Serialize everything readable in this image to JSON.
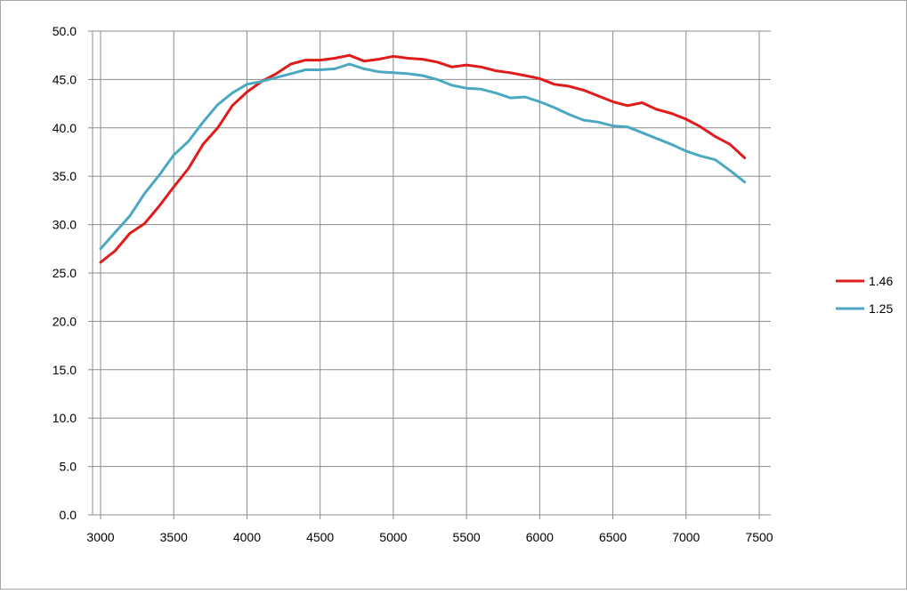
{
  "chart_data": {
    "type": "line",
    "title": "",
    "xlabel": "",
    "ylabel": "",
    "xlim": [
      3000,
      7500
    ],
    "ylim": [
      0,
      50
    ],
    "x_ticks": [
      "3000",
      "3500",
      "4000",
      "4500",
      "5000",
      "5500",
      "6000",
      "6500",
      "7000",
      "7500"
    ],
    "y_ticks": [
      "0.0",
      "5.0",
      "10.0",
      "15.0",
      "20.0",
      "25.0",
      "30.0",
      "35.0",
      "40.0",
      "45.0",
      "50.0"
    ],
    "grid": true,
    "legend_position": "right",
    "series": [
      {
        "name": "1.46",
        "color": "#e01b1b",
        "points": [
          [
            3000,
            26.1
          ],
          [
            3100,
            27.3
          ],
          [
            3200,
            29.1
          ],
          [
            3300,
            30.1
          ],
          [
            3400,
            31.9
          ],
          [
            3500,
            33.9
          ],
          [
            3600,
            35.8
          ],
          [
            3700,
            38.3
          ],
          [
            3800,
            40.0
          ],
          [
            3900,
            42.3
          ],
          [
            4000,
            43.7
          ],
          [
            4100,
            44.8
          ],
          [
            4200,
            45.6
          ],
          [
            4300,
            46.6
          ],
          [
            4400,
            47.0
          ],
          [
            4500,
            47.0
          ],
          [
            4600,
            47.2
          ],
          [
            4700,
            47.5
          ],
          [
            4800,
            46.9
          ],
          [
            4900,
            47.1
          ],
          [
            5000,
            47.4
          ],
          [
            5100,
            47.2
          ],
          [
            5200,
            47.1
          ],
          [
            5300,
            46.8
          ],
          [
            5400,
            46.3
          ],
          [
            5500,
            46.5
          ],
          [
            5600,
            46.3
          ],
          [
            5700,
            45.9
          ],
          [
            5800,
            45.7
          ],
          [
            5900,
            45.4
          ],
          [
            6000,
            45.1
          ],
          [
            6100,
            44.5
          ],
          [
            6200,
            44.3
          ],
          [
            6300,
            43.9
          ],
          [
            6400,
            43.3
          ],
          [
            6500,
            42.7
          ],
          [
            6600,
            42.3
          ],
          [
            6700,
            42.6
          ],
          [
            6800,
            41.9
          ],
          [
            6900,
            41.5
          ],
          [
            7000,
            40.9
          ],
          [
            7100,
            40.1
          ],
          [
            7200,
            39.1
          ],
          [
            7300,
            38.3
          ],
          [
            7400,
            36.9
          ]
        ]
      },
      {
        "name": "1.25",
        "color": "#4aa8c0",
        "points": [
          [
            3000,
            27.5
          ],
          [
            3100,
            29.2
          ],
          [
            3200,
            30.9
          ],
          [
            3300,
            33.2
          ],
          [
            3400,
            35.1
          ],
          [
            3500,
            37.2
          ],
          [
            3600,
            38.6
          ],
          [
            3700,
            40.6
          ],
          [
            3800,
            42.4
          ],
          [
            3900,
            43.6
          ],
          [
            4000,
            44.5
          ],
          [
            4100,
            44.8
          ],
          [
            4200,
            45.2
          ],
          [
            4300,
            45.6
          ],
          [
            4400,
            46.0
          ],
          [
            4500,
            46.0
          ],
          [
            4600,
            46.1
          ],
          [
            4700,
            46.6
          ],
          [
            4800,
            46.1
          ],
          [
            4900,
            45.8
          ],
          [
            5000,
            45.7
          ],
          [
            5100,
            45.6
          ],
          [
            5200,
            45.4
          ],
          [
            5300,
            45.0
          ],
          [
            5400,
            44.4
          ],
          [
            5500,
            44.1
          ],
          [
            5600,
            44.0
          ],
          [
            5700,
            43.6
          ],
          [
            5800,
            43.1
          ],
          [
            5900,
            43.2
          ],
          [
            6000,
            42.7
          ],
          [
            6100,
            42.1
          ],
          [
            6200,
            41.4
          ],
          [
            6300,
            40.8
          ],
          [
            6400,
            40.6
          ],
          [
            6500,
            40.2
          ],
          [
            6600,
            40.1
          ],
          [
            6700,
            39.5
          ],
          [
            6800,
            38.9
          ],
          [
            6900,
            38.3
          ],
          [
            7000,
            37.6
          ],
          [
            7100,
            37.1
          ],
          [
            7200,
            36.7
          ],
          [
            7300,
            35.6
          ],
          [
            7400,
            34.4
          ]
        ]
      }
    ]
  }
}
